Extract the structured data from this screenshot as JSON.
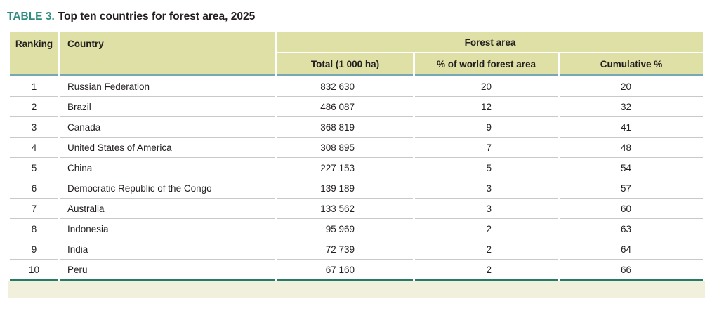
{
  "title": {
    "tag": "TABLE 3.",
    "text": "Top ten countries for forest area, 2025"
  },
  "table": {
    "columns": {
      "ranking": "Ranking",
      "country": "Country"
    },
    "group_header": "Forest area",
    "sub_columns": [
      "Total (1 000 ha)",
      "% of world forest area",
      "Cumulative %"
    ],
    "rows": [
      {
        "ranking": "1",
        "country": "Russian Federation",
        "total": "832 630",
        "pct_world": "20",
        "cumulative": "20"
      },
      {
        "ranking": "2",
        "country": "Brazil",
        "total": "486 087",
        "pct_world": "12",
        "cumulative": "32"
      },
      {
        "ranking": "3",
        "country": "Canada",
        "total": "368 819",
        "pct_world": "9",
        "cumulative": "41"
      },
      {
        "ranking": "4",
        "country": "United States of America",
        "total": "308 895",
        "pct_world": "7",
        "cumulative": "48"
      },
      {
        "ranking": "5",
        "country": "China",
        "total": "227 153",
        "pct_world": "5",
        "cumulative": "54"
      },
      {
        "ranking": "6",
        "country": "Democratic Republic of the Congo",
        "total": "139 189",
        "pct_world": "3",
        "cumulative": "57"
      },
      {
        "ranking": "7",
        "country": "Australia",
        "total": "133 562",
        "pct_world": "3",
        "cumulative": "60"
      },
      {
        "ranking": "8",
        "country": "Indonesia",
        "total": "95 969",
        "pct_world": "2",
        "cumulative": "63"
      },
      {
        "ranking": "9",
        "country": "India",
        "total": "72 739",
        "pct_world": "2",
        "cumulative": "64"
      },
      {
        "ranking": "10",
        "country": "Peru",
        "total": "67 160",
        "pct_world": "2",
        "cumulative": "66"
      }
    ]
  },
  "colors": {
    "title_tag": "#2e8b7d",
    "header_background": "#dee0a5",
    "header_underline_blue": "#79a8b5",
    "group_underline_white": "#ffffff",
    "row_separator": "#c9c9c9",
    "table_bottom_line_green": "#267b66",
    "footer_band": "#f0f0dc",
    "text": "#231f20"
  }
}
